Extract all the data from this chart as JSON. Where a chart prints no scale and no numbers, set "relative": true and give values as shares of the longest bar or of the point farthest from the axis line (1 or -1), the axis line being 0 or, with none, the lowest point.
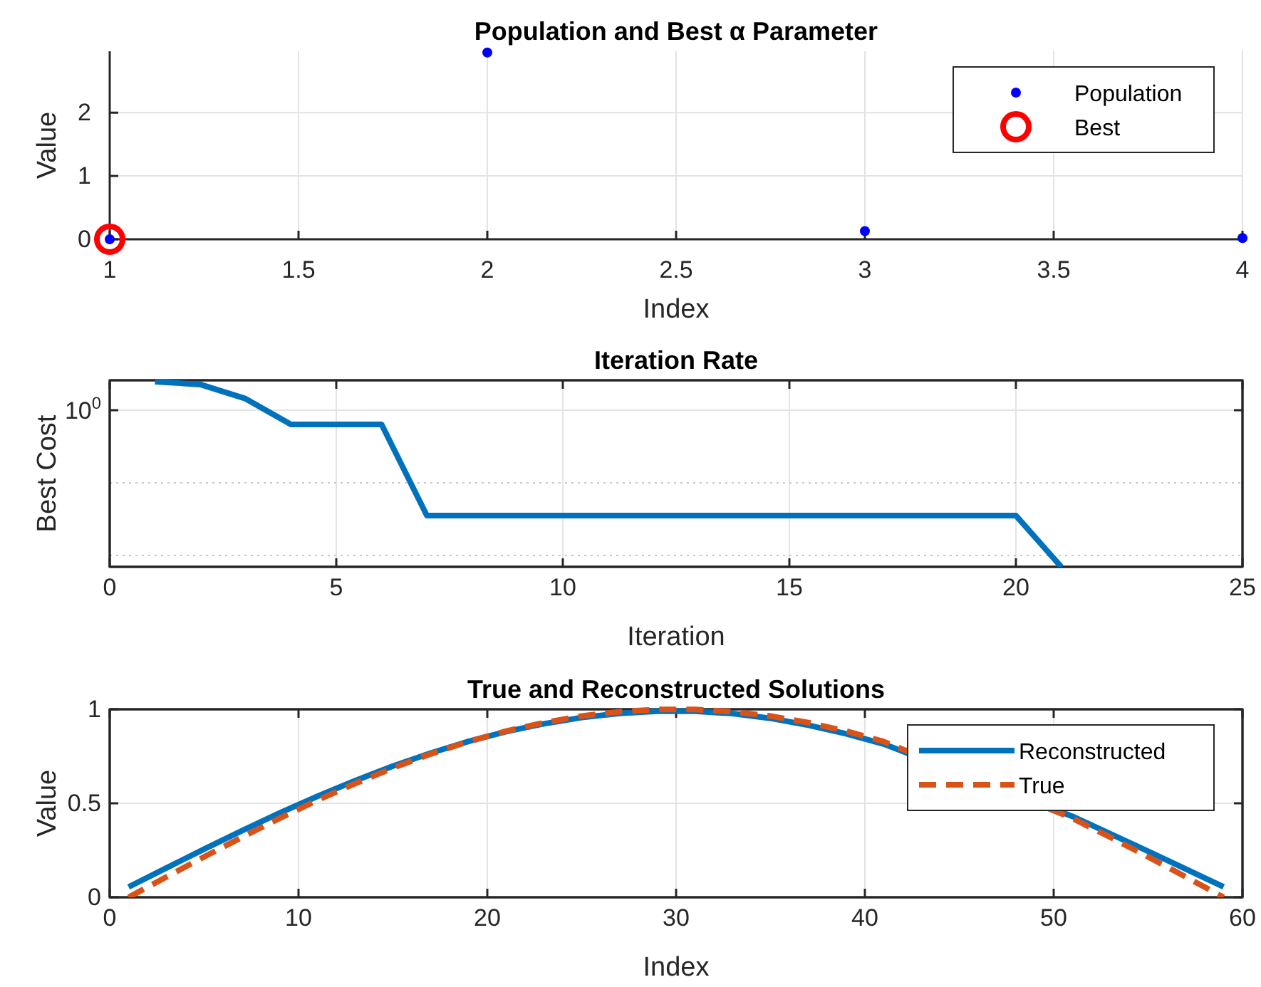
{
  "chart_data": [
    {
      "type": "scatter",
      "title": "Population and Best α Parameter",
      "xlabel": "Index",
      "ylabel": "Value",
      "xlim": [
        1,
        4
      ],
      "xticks": [
        1,
        1.5,
        2,
        2.5,
        3,
        3.5,
        4
      ],
      "ylim": [
        0,
        2.97
      ],
      "yticks": [
        0,
        1,
        2
      ],
      "grid": true,
      "legend": "top right",
      "series": [
        {
          "name": "Population",
          "marker": "circle",
          "color": "#0000ff",
          "x": [
            1,
            2,
            3,
            4
          ],
          "values": [
            0,
            2.95,
            0.13,
            0.02
          ]
        },
        {
          "name": "Best",
          "marker": "circle",
          "color": "#ff0000",
          "x": [
            1
          ],
          "values": [
            0
          ]
        }
      ]
    },
    {
      "type": "line",
      "title": "Iteration Rate",
      "xlabel": "Iteration",
      "ylabel": "Best Cost",
      "relative": true,
      "annotations": [
        "10$^{0}$"
      ],
      "xlim": [
        0,
        25
      ],
      "xticks": [
        0,
        5,
        10,
        15,
        20,
        25
      ],
      "grid": "x",
      "ref_lines": [
        {
          "axis": "y",
          "value": 0.846,
          "color": "#e3e3e3",
          "line_style": "solid"
        },
        {
          "axis": "y",
          "value": 0.454,
          "color": "#c8c8c8",
          "line_style": "dotted"
        },
        {
          "axis": "y",
          "value": 0.062,
          "color": "#c8c8c8",
          "line_style": "dotted"
        }
      ],
      "series": [
        {
          "line_style": "solid",
          "color": "#0072bd",
          "x": [
            1,
            2,
            3,
            4,
            5,
            6,
            7,
            8,
            9,
            10,
            11,
            12,
            13,
            14,
            15,
            16,
            17,
            18,
            19,
            20,
            21
          ],
          "values": [
            1,
            0.985,
            0.908,
            0.769,
            0.769,
            0.769,
            0.277,
            0.277,
            0.277,
            0.277,
            0.277,
            0.277,
            0.277,
            0.277,
            0.277,
            0.277,
            0.277,
            0.277,
            0.277,
            0.277,
            0
          ]
        }
      ]
    },
    {
      "type": "line",
      "title": "True and Reconstructed Solutions",
      "xlabel": "Index",
      "ylabel": "Value",
      "xlim": [
        0,
        60
      ],
      "xticks": [
        0,
        10,
        20,
        30,
        40,
        50,
        60
      ],
      "ylim": [
        0,
        1
      ],
      "yticks": [
        0,
        0.5,
        1
      ],
      "grid": true,
      "legend": "top right",
      "series": [
        {
          "name": "Reconstructed",
          "line_style": "solid",
          "color": "#0072bd",
          "x": [
            1,
            3,
            5,
            7,
            9,
            11,
            13,
            15,
            17,
            19,
            21,
            23,
            25,
            27,
            29,
            31,
            33,
            35,
            37,
            39,
            41,
            51,
            53,
            55,
            57,
            59
          ],
          "values": [
            0.055,
            0.156,
            0.256,
            0.354,
            0.448,
            0.537,
            0.62,
            0.698,
            0.767,
            0.829,
            0.881,
            0.923,
            0.956,
            0.978,
            0.99,
            0.99,
            0.977,
            0.952,
            0.915,
            0.87,
            0.815,
            0.43,
            0.338,
            0.245,
            0.15,
            0.055
          ]
        },
        {
          "name": "True",
          "line_style": "dashed",
          "color": "#d95319",
          "x": [
            1,
            3,
            5,
            7,
            9,
            11,
            13,
            15,
            17,
            19,
            21,
            23,
            25,
            27,
            29,
            31,
            33,
            35,
            37,
            39,
            41,
            51,
            53,
            55,
            57,
            59
          ],
          "values": [
            0,
            0.108,
            0.215,
            0.319,
            0.42,
            0.516,
            0.605,
            0.688,
            0.762,
            0.828,
            0.884,
            0.929,
            0.964,
            0.987,
            0.999,
            0.999,
            0.987,
            0.964,
            0.929,
            0.884,
            0.828,
            0.42,
            0.319,
            0.215,
            0.108,
            0
          ]
        }
      ]
    }
  ]
}
